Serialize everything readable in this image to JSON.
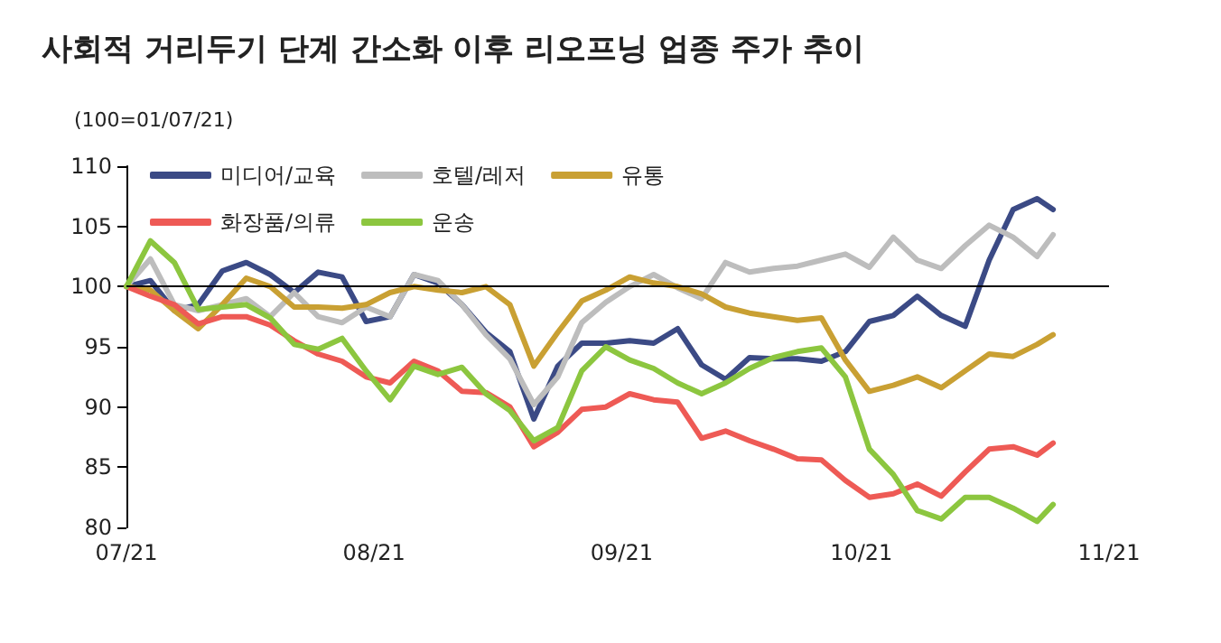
{
  "chart_data": {
    "type": "line",
    "title": "사회적 거리두기 단계 간소화 이후 리오프닝 업종 주가 추이",
    "subtitle": "(100=01/07/21)",
    "x": [
      "2021-07-01",
      "2021-07-04",
      "2021-07-07",
      "2021-07-10",
      "2021-07-13",
      "2021-07-16",
      "2021-07-19",
      "2021-07-22",
      "2021-07-25",
      "2021-07-28",
      "2021-07-31",
      "2021-08-03",
      "2021-08-06",
      "2021-08-09",
      "2021-08-12",
      "2021-08-15",
      "2021-08-18",
      "2021-08-21",
      "2021-08-24",
      "2021-08-27",
      "2021-08-30",
      "2021-09-02",
      "2021-09-05",
      "2021-09-08",
      "2021-09-11",
      "2021-09-14",
      "2021-09-17",
      "2021-09-20",
      "2021-09-23",
      "2021-09-26",
      "2021-09-29",
      "2021-10-02",
      "2021-10-05",
      "2021-10-08",
      "2021-10-11",
      "2021-10-14",
      "2021-10-17",
      "2021-10-20",
      "2021-10-23",
      "2021-10-25"
    ],
    "series": [
      {
        "name": "미디어/교육",
        "color": "#3b4a85",
        "values": [
          100,
          100.5,
          98,
          98.5,
          101.3,
          102,
          101,
          99.5,
          101.2,
          100.8,
          97.1,
          97.5,
          101,
          100.3,
          98.5,
          96.2,
          94.6,
          89,
          93.4,
          95.3,
          95.3,
          95.5,
          95.3,
          96.5,
          93.5,
          92.3,
          94.1,
          94,
          94,
          93.8,
          94.6,
          97.1,
          97.6,
          99.2,
          97.6,
          96.7,
          102.2,
          106.4,
          107.3,
          106.4
        ]
      },
      {
        "name": "호텔/레저",
        "color": "#bdbdbd",
        "values": [
          100,
          102.3,
          98.5,
          98,
          98.5,
          99,
          97.5,
          99.5,
          97.5,
          97,
          98.3,
          97.5,
          101,
          100.5,
          98.5,
          96,
          94,
          90.2,
          92.5,
          97,
          98.7,
          100,
          101,
          99.9,
          99,
          102,
          101.2,
          101.5,
          101.7,
          102.2,
          102.7,
          101.6,
          104.1,
          102.2,
          101.5,
          103.4,
          105.1,
          104.1,
          102.5,
          104.3
        ]
      },
      {
        "name": "유통",
        "color": "#c9a033",
        "values": [
          100,
          99.7,
          98,
          96.5,
          98.5,
          100.7,
          100,
          98.3,
          98.3,
          98.2,
          98.5,
          99.5,
          100,
          99.7,
          99.5,
          100,
          98.5,
          93.4,
          96.2,
          98.8,
          99.7,
          100.8,
          100.3,
          100,
          99.4,
          98.3,
          97.8,
          97.5,
          97.2,
          97.4,
          93.9,
          91.3,
          91.8,
          92.5,
          91.6,
          93,
          94.4,
          94.2,
          95.2,
          96
        ]
      },
      {
        "name": "화장품/의류",
        "color": "#ee5a55",
        "values": [
          100,
          99.2,
          98.5,
          96.9,
          97.5,
          97.5,
          96.8,
          95.5,
          94.4,
          93.8,
          92.5,
          92,
          93.8,
          93,
          91.3,
          91.2,
          90,
          86.7,
          87.9,
          89.8,
          90,
          91.1,
          90.6,
          90.4,
          87.4,
          88,
          87.2,
          86.5,
          85.7,
          85.6,
          83.9,
          82.5,
          82.8,
          83.6,
          82.6,
          84.6,
          86.5,
          86.7,
          86,
          87
        ]
      },
      {
        "name": "운송",
        "color": "#8cc63f",
        "values": [
          100,
          103.8,
          102,
          98.1,
          98.3,
          98.5,
          97.4,
          95.2,
          94.8,
          95.7,
          93,
          90.6,
          93.4,
          92.7,
          93.3,
          91.1,
          89.7,
          87.2,
          88.3,
          93,
          95,
          93.9,
          93.2,
          92,
          91.1,
          92,
          93.2,
          94.1,
          94.6,
          94.9,
          92.5,
          86.5,
          84.4,
          81.4,
          80.7,
          82.5,
          82.5,
          81.6,
          80.5,
          81.9
        ]
      }
    ],
    "xlim": [
      "2021-07",
      "2021-11"
    ],
    "xticks": [
      {
        "value": "2021-07",
        "label": "07/21"
      },
      {
        "value": "2021-08",
        "label": "08/21"
      },
      {
        "value": "2021-09",
        "label": "09/21"
      },
      {
        "value": "2021-10",
        "label": "10/21"
      },
      {
        "value": "2021-11",
        "label": "11/21"
      }
    ],
    "ylim": [
      80,
      110
    ],
    "yticks": [
      80,
      85,
      90,
      95,
      100,
      105,
      110
    ],
    "ref_lines": [
      {
        "axis": "y",
        "value": 100,
        "color": "#000000"
      }
    ],
    "grid": false,
    "legend": "top left"
  }
}
